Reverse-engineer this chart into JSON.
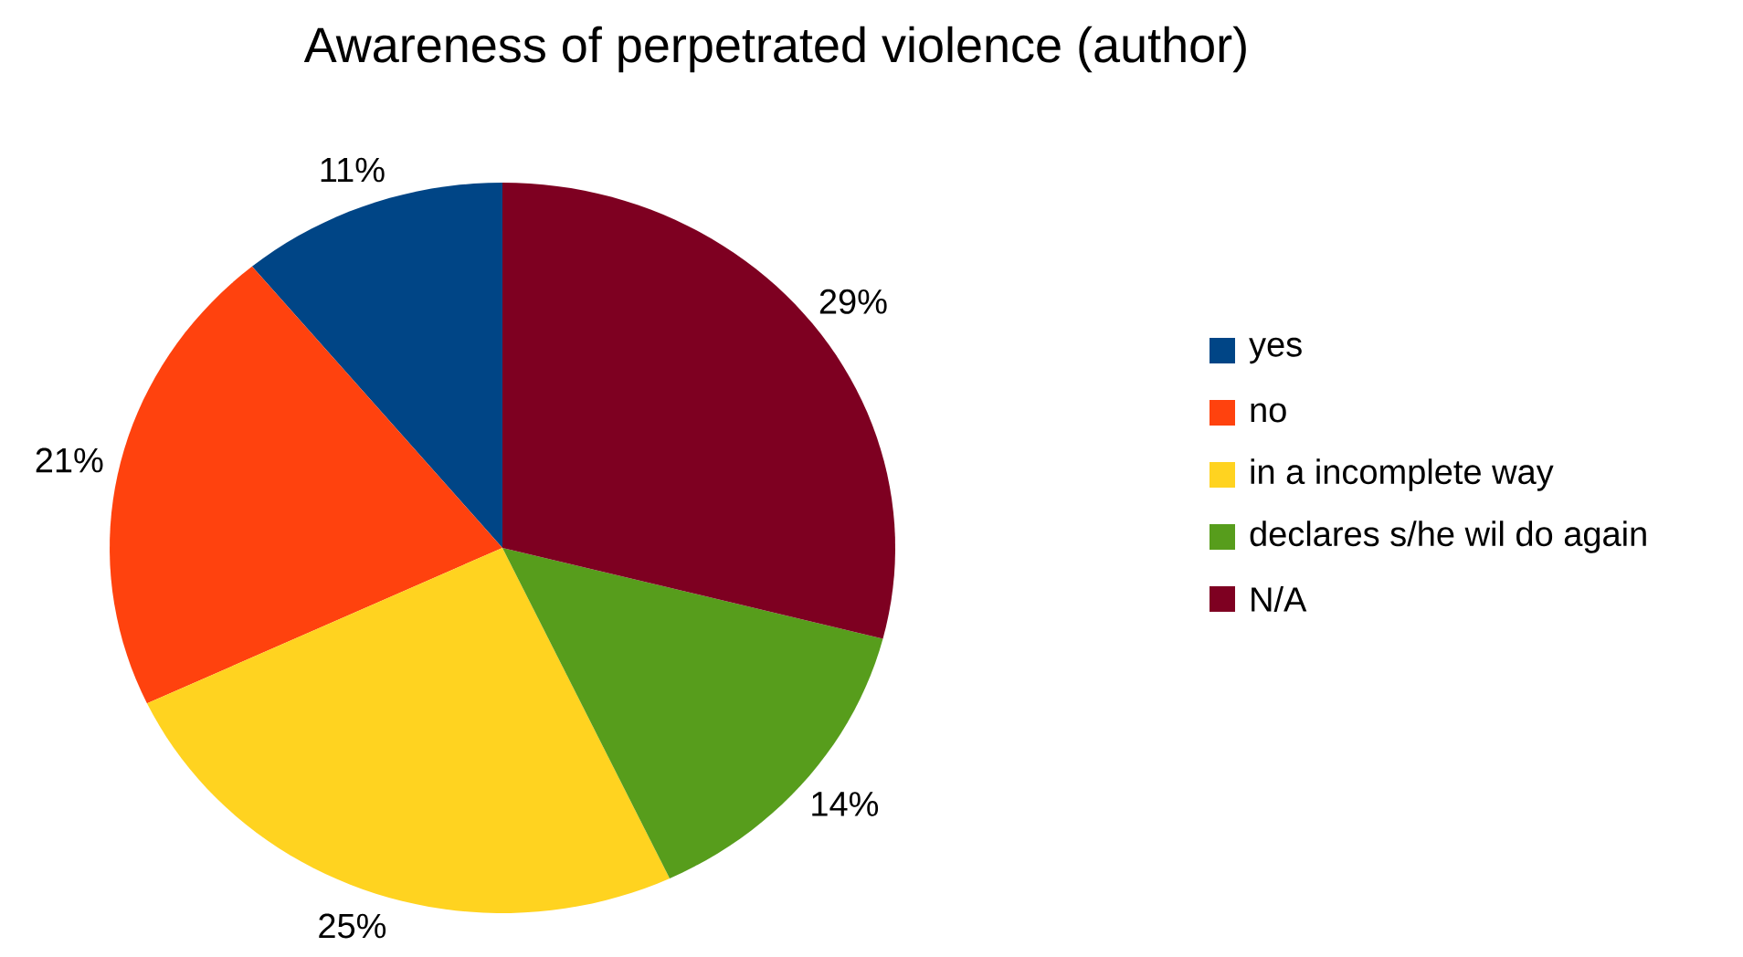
{
  "chart_data": {
    "type": "pie",
    "title": "Awareness of perpetrated violence (author)",
    "categories": [
      "yes",
      "no",
      "in a incomplete way",
      "declares s/he wil do again",
      "N/A"
    ],
    "values": [
      11,
      21,
      25,
      14,
      29
    ],
    "value_labels": [
      "11%",
      "21%",
      "25%",
      "14%",
      "29%"
    ],
    "colors": [
      "#004586",
      "#ff420e",
      "#ffd320",
      "#579d1c",
      "#7e0021"
    ],
    "legend": "right"
  }
}
